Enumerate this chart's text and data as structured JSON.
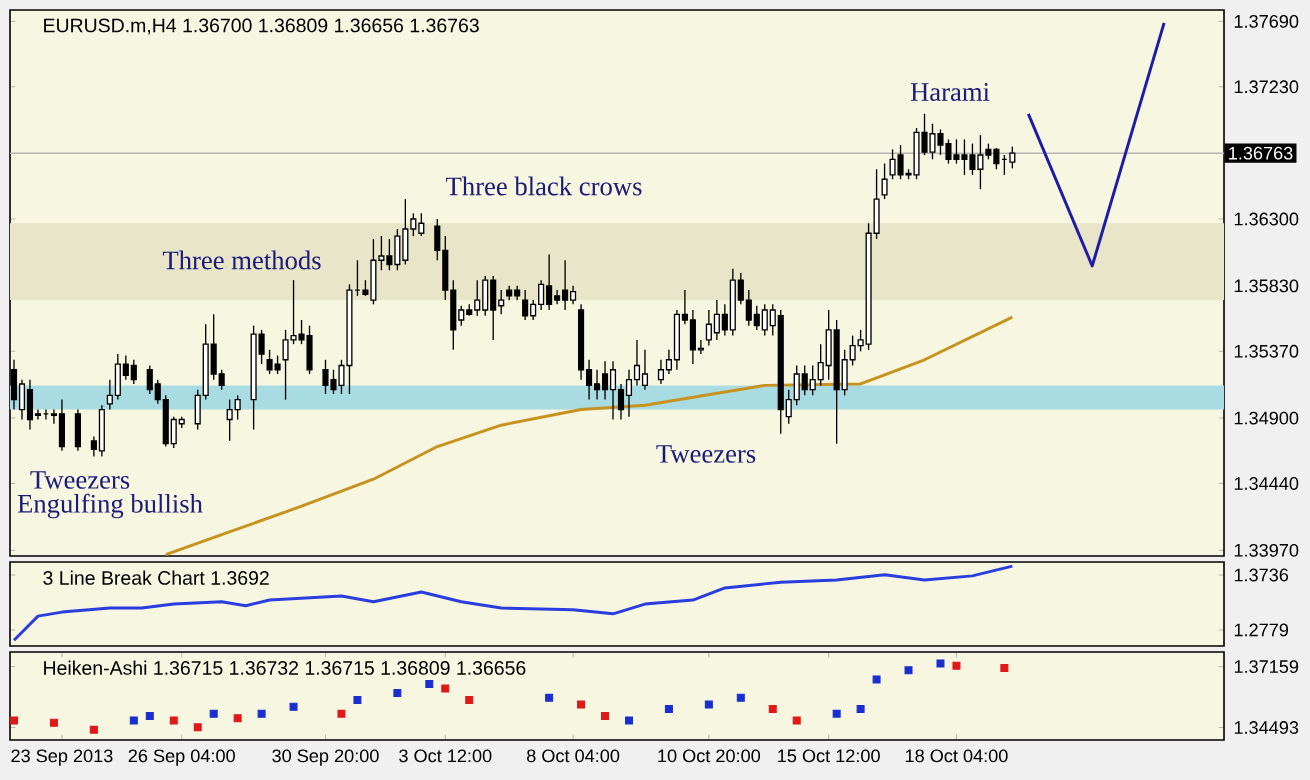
{
  "chart_data": [
    {
      "type": "candlestick",
      "title": "EURUSD.m,H4  1.36700 1.36809 1.36656 1.36763",
      "categories": [
        null,
        null,
        null,
        null,
        null,
        null,
        null,
        null,
        null,
        null,
        null,
        null,
        null,
        null,
        null,
        null,
        null,
        null,
        null,
        null,
        null,
        null,
        null,
        null,
        null,
        null,
        null,
        null,
        null,
        null,
        null,
        null,
        null,
        null,
        null,
        null,
        null,
        null,
        null,
        null,
        null,
        null,
        null,
        null,
        null,
        null,
        null,
        null,
        null,
        null,
        null,
        null,
        null,
        null,
        null,
        null,
        null,
        null,
        null,
        null,
        null,
        null,
        null,
        null,
        null,
        null,
        null,
        null,
        null,
        null,
        null,
        null,
        null,
        null,
        null,
        null,
        null,
        null,
        null,
        null,
        null,
        null,
        null,
        null,
        null,
        null,
        null,
        null,
        null,
        null,
        null,
        null,
        null,
        null,
        null,
        null,
        null,
        null,
        null,
        null,
        null,
        null,
        null,
        null,
        null,
        null,
        null,
        null,
        null,
        null,
        null,
        null,
        null,
        null,
        null,
        null,
        null,
        null,
        null,
        null,
        null,
        null,
        null,
        null,
        null,
        null,
        null,
        null,
        null,
        null,
        null,
        null,
        null,
        null,
        null,
        null,
        null,
        null,
        null,
        null,
        null,
        null,
        null,
        null,
        null,
        null,
        null,
        null,
        null,
        null,
        null,
        null
      ],
      "ohlc": [
        [
          1.3524,
          1.3531,
          1.3496,
          1.3503
        ],
        [
          1.3496,
          1.3517,
          1.3489,
          1.3514
        ],
        [
          1.351,
          1.3517,
          1.3482,
          1.3489
        ],
        [
          1.3493,
          1.3496,
          1.3489,
          1.3492
        ],
        [
          1.3493,
          1.3496,
          1.3489,
          1.3493
        ],
        [
          1.3492,
          1.3496,
          1.3486,
          1.3493
        ],
        [
          1.3493,
          1.3503,
          1.3467,
          1.347
        ],
        null,
        [
          1.3493,
          1.3496,
          1.3467,
          1.347
        ],
        null,
        [
          1.3474,
          1.3477,
          1.3463,
          1.3468
        ],
        [
          1.3467,
          1.3499,
          1.3463,
          1.3496
        ],
        [
          1.35,
          1.3517,
          1.3496,
          1.3506
        ],
        [
          1.3506,
          1.3535,
          1.3503,
          1.3528
        ],
        [
          1.3528,
          1.3534,
          1.3517,
          1.352
        ],
        [
          1.3527,
          1.3531,
          1.3514,
          1.3517
        ],
        null,
        [
          1.3524,
          1.3527,
          1.3507,
          1.351
        ],
        [
          1.3514,
          1.3517,
          1.35,
          1.3503
        ],
        [
          1.3503,
          1.3506,
          1.347,
          1.3472
        ],
        [
          1.3472,
          1.3491,
          1.3469,
          1.3489
        ],
        [
          1.3486,
          1.3491,
          1.3483,
          1.3489
        ],
        null,
        [
          1.3486,
          1.351,
          1.3482,
          1.3506
        ],
        [
          1.3506,
          1.3556,
          1.3503,
          1.3542
        ],
        [
          1.3542,
          1.3563,
          1.3517,
          1.3521
        ],
        [
          1.3521,
          1.3524,
          1.351,
          1.3513
        ],
        [
          1.3489,
          1.3503,
          1.3474,
          1.3496
        ],
        [
          1.3496,
          1.3506,
          1.3489,
          1.3503
        ],
        null,
        [
          1.3503,
          1.3555,
          1.3482,
          1.3549
        ],
        [
          1.3549,
          1.3552,
          1.3528,
          1.3535
        ],
        [
          1.3531,
          1.3538,
          1.3521,
          1.3524
        ],
        [
          1.3528,
          1.3534,
          1.3521,
          1.3524
        ],
        [
          1.3531,
          1.3552,
          1.3503,
          1.3545
        ],
        [
          1.3545,
          1.3587,
          1.3542,
          1.3548
        ],
        [
          1.3549,
          1.3559,
          1.3542,
          1.3545
        ],
        [
          1.3548,
          1.3555,
          1.3521,
          1.3524
        ],
        null,
        [
          1.3524,
          1.3531,
          1.3507,
          1.3513
        ],
        [
          1.3517,
          1.3524,
          1.3507,
          1.351
        ],
        [
          1.3513,
          1.3531,
          1.3507,
          1.3527
        ],
        [
          1.3527,
          1.3584,
          1.3507,
          1.358
        ],
        [
          1.358,
          1.3601,
          1.3576,
          1.358
        ],
        [
          1.358,
          1.3587,
          1.3576,
          1.3577
        ],
        [
          1.3573,
          1.3616,
          1.357,
          1.3601
        ],
        [
          1.3601,
          1.3618,
          1.3594,
          1.3604
        ],
        [
          1.3604,
          1.3616,
          1.3594,
          1.3598
        ],
        [
          1.3598,
          1.3623,
          1.3594,
          1.3618
        ],
        [
          1.3601,
          1.3644,
          1.3598,
          1.3623
        ],
        [
          1.3623,
          1.3634,
          1.3618,
          1.363
        ],
        [
          1.362,
          1.3634,
          1.3618,
          1.3627
        ],
        null,
        [
          1.3625,
          1.363,
          1.3601,
          1.3608
        ],
        [
          1.3608,
          1.3618,
          1.3573,
          1.358
        ],
        [
          1.358,
          1.3587,
          1.3538,
          1.3552
        ],
        [
          1.3559,
          1.3569,
          1.3555,
          1.3566
        ],
        [
          1.3566,
          1.357,
          1.3562,
          1.3563
        ],
        [
          1.3566,
          1.3587,
          1.3562,
          1.3573
        ],
        [
          1.3566,
          1.359,
          1.3562,
          1.3587
        ],
        [
          1.3587,
          1.359,
          1.3545,
          1.3566
        ],
        [
          1.3569,
          1.358,
          1.3563,
          1.3573
        ],
        [
          1.358,
          1.3583,
          1.3573,
          1.3576
        ],
        [
          1.358,
          1.3583,
          1.3573,
          1.3576
        ],
        [
          1.3573,
          1.358,
          1.3559,
          1.3562
        ],
        [
          1.3562,
          1.3573,
          1.3559,
          1.357
        ],
        [
          1.357,
          1.3587,
          1.3566,
          1.3584
        ],
        [
          1.3583,
          1.3605,
          1.3566,
          1.357
        ],
        [
          1.3576,
          1.358,
          1.357,
          1.3573
        ],
        [
          1.358,
          1.3601,
          1.3566,
          1.3573
        ],
        [
          1.3573,
          1.3583,
          1.357,
          1.3579
        ],
        [
          1.3566,
          1.357,
          1.3517,
          1.3524
        ],
        [
          1.3524,
          1.3531,
          1.3503,
          1.3513
        ],
        [
          1.3514,
          1.3524,
          1.3503,
          1.351
        ],
        [
          1.3521,
          1.353,
          1.3503,
          1.351
        ],
        [
          1.351,
          1.353,
          1.3489,
          1.3524
        ],
        [
          1.351,
          1.3514,
          1.3489,
          1.3496
        ],
        [
          1.3506,
          1.3524,
          1.3491,
          1.3517
        ],
        [
          1.3517,
          1.3545,
          1.3513,
          1.3527
        ],
        [
          1.3513,
          1.3538,
          1.351,
          1.3521
        ],
        null,
        [
          1.3517,
          1.3531,
          1.3514,
          1.3524
        ],
        [
          1.3524,
          1.3538,
          1.3521,
          1.3531
        ],
        [
          1.3531,
          1.3566,
          1.3524,
          1.3563
        ],
        [
          1.3563,
          1.358,
          1.3556,
          1.3559
        ],
        [
          1.3559,
          1.3566,
          1.3528,
          1.3538
        ],
        [
          1.3538,
          1.3545,
          1.3535,
          1.3539
        ],
        [
          1.3545,
          1.3566,
          1.3541,
          1.3556
        ],
        [
          1.355,
          1.3573,
          1.3545,
          1.3563
        ],
        [
          1.3563,
          1.357,
          1.3548,
          1.3552
        ],
        [
          1.3552,
          1.3595,
          1.3548,
          1.3587
        ],
        [
          1.3587,
          1.3592,
          1.357,
          1.3573
        ],
        [
          1.3573,
          1.358,
          1.3555,
          1.3559
        ],
        [
          1.3563,
          1.3569,
          1.3552,
          1.3555
        ],
        [
          1.3552,
          1.357,
          1.3548,
          1.3566
        ],
        [
          1.3555,
          1.357,
          1.3548,
          1.3566
        ],
        [
          1.3562,
          1.3566,
          1.3479,
          1.3496
        ],
        [
          1.3491,
          1.351,
          1.3486,
          1.3503
        ],
        [
          1.3503,
          1.3527,
          1.3499,
          1.3521
        ],
        [
          1.3521,
          1.3527,
          1.3506,
          1.351
        ],
        [
          1.351,
          1.3527,
          1.3506,
          1.3517
        ],
        [
          1.3517,
          1.3542,
          1.3513,
          1.3529
        ],
        [
          1.3527,
          1.3566,
          1.3517,
          1.3552
        ],
        [
          1.3552,
          1.3559,
          1.3472,
          1.351
        ],
        [
          1.351,
          1.3538,
          1.3506,
          1.3531
        ],
        [
          1.3531,
          1.3548,
          1.3527,
          1.3541
        ],
        [
          1.3541,
          1.3552,
          1.3537,
          1.3545
        ],
        [
          1.3542,
          1.3627,
          1.3538,
          1.362
        ],
        [
          1.362,
          1.3665,
          1.3616,
          1.3644
        ],
        [
          1.3647,
          1.3669,
          1.3644,
          1.3658
        ],
        [
          1.3661,
          1.3679,
          1.3658,
          1.3672
        ],
        [
          1.3675,
          1.3682,
          1.3658,
          1.3661
        ],
        [
          1.3661,
          1.3665,
          1.3658,
          1.3662
        ],
        [
          1.3661,
          1.3694,
          1.3658,
          1.3691
        ],
        [
          1.3691,
          1.3704,
          1.3675,
          1.3677
        ],
        [
          1.3677,
          1.3697,
          1.3672,
          1.369
        ],
        [
          1.369,
          1.3693,
          1.3675,
          1.3682
        ],
        [
          1.3683,
          1.3686,
          1.3669,
          1.3672
        ],
        [
          1.3675,
          1.3686,
          1.3669,
          1.3672
        ],
        [
          1.3675,
          1.3686,
          1.3661,
          1.3672
        ],
        [
          1.3675,
          1.3683,
          1.3661,
          1.3665
        ],
        [
          1.3665,
          1.3689,
          1.3651,
          1.3675
        ],
        [
          1.3679,
          1.3683,
          1.3672,
          1.3675
        ],
        [
          1.3679,
          1.368,
          1.3665,
          1.3669
        ],
        [
          1.3672,
          1.3675,
          1.3661,
          1.3672
        ],
        [
          1.367,
          1.36809,
          1.36656,
          1.36763
        ],
        null,
        null,
        null,
        null,
        null,
        null,
        null,
        null,
        null,
        null,
        null,
        null,
        null,
        null,
        null,
        null,
        null,
        null,
        null,
        null,
        null,
        null,
        null,
        null,
        null,
        null
      ],
      "series": [
        {
          "type": "line",
          "color": "#c8921e",
          "values": [
            null,
            null,
            null,
            null,
            null,
            null,
            null,
            null,
            null,
            null,
            null,
            null,
            null,
            null,
            null,
            null,
            null,
            null,
            null,
            1.3394,
            null,
            null,
            null,
            null,
            null,
            null,
            1.3408,
            null,
            null,
            null,
            null,
            null,
            null,
            null,
            null,
            null,
            1.3428,
            null,
            null,
            null,
            null,
            null,
            null,
            null,
            null,
            1.3447,
            null,
            null,
            null,
            null,
            null,
            null,
            null,
            1.347,
            null,
            null,
            null,
            null,
            null,
            null,
            null,
            1.3485,
            null,
            null,
            null,
            null,
            null,
            null,
            null,
            null,
            null,
            1.3496,
            null,
            null,
            null,
            null,
            null,
            null,
            null,
            1.3499,
            null,
            null,
            null,
            null,
            null,
            null,
            null,
            null,
            null,
            null,
            null,
            null,
            null,
            null,
            1.3513,
            null,
            null,
            null,
            null,
            null,
            null,
            null,
            null,
            null,
            null,
            null,
            1.3514,
            null,
            null,
            null,
            null,
            null,
            null,
            null,
            1.3531,
            null,
            null,
            null,
            null,
            null,
            null,
            null,
            null,
            null,
            null,
            1.3561,
            null,
            null,
            null,
            null,
            null,
            null,
            null,
            null,
            null,
            null,
            null,
            null,
            null,
            null,
            null,
            null,
            null,
            null,
            null,
            null,
            null,
            null,
            null,
            null,
            null,
            null
          ]
        },
        {
          "type": "line",
          "color": "#1c1ca8",
          "values": [
            null,
            null,
            null,
            null,
            null,
            null,
            null,
            null,
            null,
            null,
            null,
            null,
            null,
            null,
            null,
            null,
            null,
            null,
            null,
            null,
            null,
            null,
            null,
            null,
            null,
            null,
            null,
            null,
            null,
            null,
            null,
            null,
            null,
            null,
            null,
            null,
            null,
            null,
            null,
            null,
            null,
            null,
            null,
            null,
            null,
            null,
            null,
            null,
            null,
            null,
            null,
            null,
            null,
            null,
            null,
            null,
            null,
            null,
            null,
            null,
            null,
            null,
            null,
            null,
            null,
            null,
            null,
            null,
            null,
            null,
            null,
            null,
            null,
            null,
            null,
            null,
            null,
            null,
            null,
            null,
            null,
            null,
            null,
            null,
            null,
            null,
            null,
            null,
            null,
            null,
            null,
            null,
            null,
            null,
            null,
            null,
            null,
            null,
            null,
            null,
            null,
            null,
            null,
            null,
            null,
            null,
            null,
            null,
            null,
            null,
            null,
            null,
            null,
            null,
            null,
            null,
            null,
            null,
            null,
            null,
            null,
            null,
            null,
            null,
            null,
            null,
            null,
            1.3704,
            null,
            null,
            null,
            null,
            null,
            null,
            null,
            1.3597,
            null,
            null,
            null,
            null,
            null,
            null,
            null,
            null,
            1.3768,
            null,
            null,
            null,
            null,
            null,
            null,
            null
          ]
        }
      ],
      "ylim": [
        1.3393,
        1.3777
      ],
      "yticks": [
        {
          "value": 1.3397,
          "label": "1.33970"
        },
        {
          "value": 1.3444,
          "label": "1.34440"
        },
        {
          "value": 1.349,
          "label": "1.34900"
        },
        {
          "value": 1.3537,
          "label": "1.35370"
        },
        {
          "value": 1.3583,
          "label": "1.35830"
        },
        {
          "value": 1.363,
          "label": "1.36300"
        },
        {
          "value": 1.3723,
          "label": "1.37230"
        },
        {
          "value": 1.3769,
          "label": "1.37690"
        }
      ],
      "tick_labels": "y",
      "bands": [
        {
          "axis": "y",
          "from": 1.3573,
          "to": 1.3627,
          "color": "#e8e5c8"
        },
        {
          "axis": "y",
          "from": 1.3496,
          "to": 1.3513,
          "color": "#a9dbe3"
        }
      ],
      "ref_lines": [
        {
          "axis": "y",
          "value": 1.36763,
          "label": "1.36763",
          "color": "#b4b4b4"
        }
      ],
      "annotations": [
        "Three methods",
        "Three black crows",
        "Harami",
        "Tweezers",
        "Tweezers",
        "Engulfing bullish"
      ]
    },
    {
      "type": "line",
      "title": "3 Line Break Chart 1.3692",
      "categories": [
        null,
        null,
        null,
        null,
        null,
        null,
        null,
        null,
        null,
        null,
        null,
        null,
        null,
        null,
        null,
        null,
        null,
        null,
        null,
        null,
        null,
        null,
        null,
        null,
        null,
        null,
        null,
        null,
        null,
        null,
        null,
        null,
        null,
        null,
        null,
        null,
        null,
        null,
        null,
        null,
        null,
        null,
        null,
        null,
        null,
        null,
        null,
        null,
        null,
        null,
        null,
        null,
        null,
        null,
        null,
        null,
        null,
        null,
        null,
        null,
        null,
        null,
        null,
        null,
        null,
        null,
        null,
        null,
        null,
        null,
        null,
        null,
        null,
        null,
        null,
        null,
        null,
        null,
        null,
        null,
        null,
        null,
        null,
        null,
        null,
        null,
        null,
        null,
        null,
        null,
        null,
        null,
        null,
        null,
        null,
        null,
        null,
        null,
        null,
        null,
        null,
        null,
        null,
        null,
        null,
        null,
        null,
        null,
        null,
        null,
        null,
        null,
        null,
        null,
        null,
        null,
        null,
        null,
        null,
        null,
        null,
        null,
        null,
        null,
        null,
        null,
        null,
        null,
        null,
        null,
        null,
        null,
        null,
        null,
        null,
        null,
        null,
        null,
        null,
        null,
        null,
        null,
        null,
        null,
        null,
        null,
        null,
        null,
        null,
        null,
        null,
        null
      ],
      "series": [
        {
          "color": "#2a3ee0",
          "values": [
            1.26,
            null,
            null,
            1.302,
            null,
            null,
            1.309,
            null,
            null,
            null,
            null,
            null,
            1.316,
            null,
            null,
            null,
            1.316,
            null,
            null,
            null,
            1.323,
            null,
            null,
            null,
            null,
            null,
            1.327,
            null,
            null,
            1.32,
            null,
            null,
            1.33,
            null,
            null,
            null,
            null,
            null,
            null,
            null,
            null,
            1.337,
            null,
            null,
            null,
            1.327,
            null,
            null,
            null,
            null,
            null,
            1.344,
            null,
            null,
            null,
            null,
            1.327,
            null,
            null,
            null,
            null,
            1.316,
            null,
            null,
            null,
            null,
            null,
            null,
            null,
            null,
            1.313,
            null,
            null,
            null,
            null,
            1.306,
            null,
            null,
            null,
            1.323,
            null,
            null,
            null,
            null,
            null,
            1.33,
            null,
            null,
            null,
            1.351,
            null,
            null,
            null,
            null,
            null,
            null,
            1.361,
            null,
            null,
            null,
            null,
            null,
            null,
            1.365,
            null,
            null,
            null,
            null,
            null,
            1.374,
            null,
            null,
            null,
            null,
            1.365,
            null,
            null,
            null,
            null,
            null,
            1.372,
            null,
            null,
            null,
            null,
            1.389,
            null,
            null,
            null,
            null,
            null,
            null,
            null,
            null,
            null,
            null,
            null,
            null,
            null,
            null,
            null,
            null,
            null,
            null,
            null,
            null,
            null,
            null,
            null,
            null,
            null,
            null
          ]
        }
      ],
      "ylim": [
        1.2499,
        1.3962
      ],
      "yticks": [
        1.2779,
        1.3736
      ],
      "tick_labels": "y"
    },
    {
      "type": "scatter",
      "title": "Heiken-Ashi 1.36715 1.36732 1.36715 1.36809 1.36656",
      "marker": "square",
      "categories": [
        null,
        null,
        null,
        null,
        null,
        null,
        "23 Sep 2013",
        null,
        null,
        null,
        null,
        null,
        null,
        null,
        null,
        null,
        null,
        null,
        null,
        null,
        null,
        "26 Sep 04:00",
        null,
        null,
        null,
        null,
        null,
        null,
        null,
        null,
        null,
        null,
        null,
        null,
        null,
        null,
        null,
        null,
        null,
        "30 Sep 20:00",
        null,
        null,
        null,
        null,
        null,
        null,
        null,
        null,
        null,
        null,
        null,
        null,
        null,
        null,
        "3 Oct 12:00",
        null,
        null,
        null,
        null,
        null,
        null,
        null,
        null,
        null,
        null,
        null,
        null,
        null,
        null,
        null,
        "8 Oct 04:00",
        null,
        null,
        null,
        null,
        null,
        null,
        null,
        null,
        null,
        null,
        null,
        null,
        null,
        null,
        null,
        null,
        "10 Oct 20:00",
        null,
        null,
        null,
        null,
        null,
        null,
        null,
        null,
        null,
        null,
        null,
        null,
        null,
        null,
        "15 Oct 12:00",
        null,
        null,
        null,
        null,
        null,
        null,
        null,
        null,
        null,
        null,
        null,
        null,
        null,
        null,
        null,
        "18 Oct 04:00",
        null,
        null,
        null,
        null,
        null,
        null,
        null,
        null,
        null,
        null,
        null,
        null,
        null,
        null,
        null,
        null,
        null,
        null,
        null,
        null,
        null,
        null,
        null,
        null,
        null,
        null,
        null,
        null,
        null,
        null,
        null,
        null,
        null
      ],
      "values": [
        1.348,
        null,
        null,
        null,
        null,
        1.347,
        null,
        null,
        null,
        null,
        1.344,
        null,
        null,
        null,
        null,
        1.348,
        null,
        1.35,
        null,
        null,
        1.348,
        null,
        null,
        1.345,
        null,
        1.351,
        null,
        null,
        1.349,
        null,
        null,
        1.351,
        null,
        null,
        null,
        1.354,
        null,
        null,
        null,
        null,
        null,
        1.351,
        null,
        1.357,
        null,
        null,
        null,
        null,
        1.36,
        null,
        null,
        null,
        1.364,
        null,
        1.362,
        null,
        null,
        1.357,
        null,
        null,
        null,
        null,
        null,
        null,
        null,
        null,
        null,
        1.358,
        null,
        null,
        null,
        1.355,
        null,
        null,
        1.35,
        null,
        null,
        1.348,
        null,
        null,
        null,
        null,
        1.353,
        null,
        null,
        null,
        null,
        1.355,
        null,
        null,
        null,
        1.358,
        null,
        null,
        null,
        1.353,
        null,
        null,
        1.348,
        null,
        null,
        null,
        null,
        1.351,
        null,
        null,
        1.353,
        null,
        1.366,
        null,
        null,
        null,
        1.37,
        null,
        null,
        null,
        1.373,
        null,
        1.372,
        null,
        null,
        null,
        null,
        null,
        1.371,
        null,
        null,
        null,
        null,
        null,
        null,
        null,
        null,
        null,
        null,
        null,
        null,
        null,
        null,
        null,
        null,
        null,
        null,
        null,
        null,
        null,
        null,
        null,
        null,
        null,
        null,
        null
      ],
      "colors": [
        "#e01818",
        null,
        null,
        null,
        null,
        "#e01818",
        null,
        null,
        null,
        null,
        "#e01818",
        null,
        null,
        null,
        null,
        "#1a2ed0",
        null,
        "#1a2ed0",
        null,
        null,
        "#e01818",
        null,
        null,
        "#e01818",
        null,
        "#1a2ed0",
        null,
        null,
        "#e01818",
        null,
        null,
        "#1a2ed0",
        null,
        null,
        null,
        "#1a2ed0",
        null,
        null,
        null,
        null,
        null,
        "#e01818",
        null,
        "#1a2ed0",
        null,
        null,
        null,
        null,
        "#1a2ed0",
        null,
        null,
        null,
        "#1a2ed0",
        null,
        "#e01818",
        null,
        null,
        "#e01818",
        null,
        null,
        null,
        null,
        null,
        null,
        null,
        null,
        null,
        "#1a2ed0",
        null,
        null,
        null,
        "#e01818",
        null,
        null,
        "#e01818",
        null,
        null,
        "#1a2ed0",
        null,
        null,
        null,
        null,
        "#1a2ed0",
        null,
        null,
        null,
        null,
        "#1a2ed0",
        null,
        null,
        null,
        "#1a2ed0",
        null,
        null,
        null,
        "#e01818",
        null,
        null,
        "#e01818",
        null,
        null,
        null,
        null,
        "#1a2ed0",
        null,
        null,
        "#1a2ed0",
        null,
        "#1a2ed0",
        null,
        null,
        null,
        "#1a2ed0",
        null,
        null,
        null,
        "#1a2ed0",
        null,
        "#e01818",
        null,
        null,
        null,
        null,
        null,
        "#e01818",
        null,
        null,
        null,
        null,
        null,
        null,
        null,
        null,
        null,
        null,
        null,
        null,
        null,
        null,
        null,
        null,
        null,
        null,
        null,
        null,
        null,
        null,
        null,
        null,
        null,
        null,
        null
      ],
      "ylim": [
        1.33946,
        1.37798
      ],
      "yticks": [
        1.34493,
        1.37159
      ]
    }
  ]
}
